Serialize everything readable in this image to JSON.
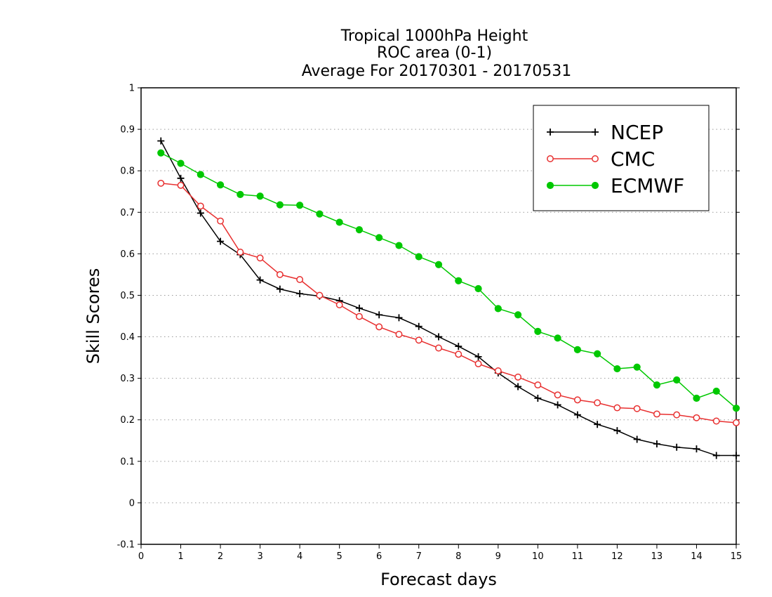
{
  "chart_data": {
    "type": "line",
    "title_lines": [
      "Tropical 1000hPa Height",
      "ROC area (0-1)",
      "Average For 20170301 - 20170531"
    ],
    "xlabel": "Forecast days",
    "ylabel": "Skill Scores",
    "xlim": [
      0,
      15
    ],
    "ylim": [
      -0.1,
      1
    ],
    "xticks": [
      0,
      1,
      2,
      3,
      4,
      5,
      6,
      7,
      8,
      9,
      10,
      11,
      12,
      13,
      14,
      15
    ],
    "yticks": [
      -0.1,
      0,
      0.1,
      0.2,
      0.3,
      0.4,
      0.5,
      0.6,
      0.7,
      0.8,
      0.9,
      1
    ],
    "ytick_labels": [
      "-0.1",
      "0",
      "0.1",
      "0.2",
      "0.3",
      "0.4",
      "0.5",
      "0.6",
      "0.7",
      "0.8",
      "0.9",
      "1"
    ],
    "grid": "horizontal dotted",
    "legend_position": "top-right",
    "x": [
      0.5,
      1,
      1.5,
      2,
      2.5,
      3,
      3.5,
      4,
      4.5,
      5,
      5.5,
      6,
      6.5,
      7,
      7.5,
      8,
      8.5,
      9,
      9.5,
      10,
      10.5,
      11,
      11.5,
      12,
      12.5,
      13,
      13.5,
      14,
      14.5,
      15
    ],
    "series": [
      {
        "name": "NCEP",
        "color": "#000000",
        "marker": "plus",
        "values": [
          0.872,
          0.782,
          0.698,
          0.63,
          0.598,
          0.537,
          0.515,
          0.504,
          0.498,
          0.487,
          0.469,
          0.453,
          0.446,
          0.425,
          0.4,
          0.377,
          0.352,
          0.313,
          0.28,
          0.252,
          0.236,
          0.212,
          0.189,
          0.174,
          0.153,
          0.142,
          0.134,
          0.13,
          0.114,
          0.114
        ]
      },
      {
        "name": "CMC",
        "color": "#e83030",
        "marker": "open-circle",
        "values": [
          0.77,
          0.765,
          0.715,
          0.679,
          0.604,
          0.59,
          0.55,
          0.538,
          0.5,
          0.477,
          0.449,
          0.424,
          0.406,
          0.392,
          0.373,
          0.358,
          0.335,
          0.318,
          0.303,
          0.284,
          0.26,
          0.248,
          0.241,
          0.229,
          0.227,
          0.214,
          0.212,
          0.205,
          0.197,
          0.193
        ]
      },
      {
        "name": "ECMWF",
        "color": "#00c800",
        "marker": "filled-circle",
        "values": [
          0.843,
          0.818,
          0.791,
          0.766,
          0.743,
          0.739,
          0.718,
          0.717,
          0.696,
          0.676,
          0.658,
          0.639,
          0.62,
          0.593,
          0.574,
          0.535,
          0.516,
          0.468,
          0.453,
          0.413,
          0.397,
          0.369,
          0.359,
          0.323,
          0.327,
          0.284,
          0.296,
          0.252,
          0.269,
          0.228
        ]
      }
    ]
  }
}
